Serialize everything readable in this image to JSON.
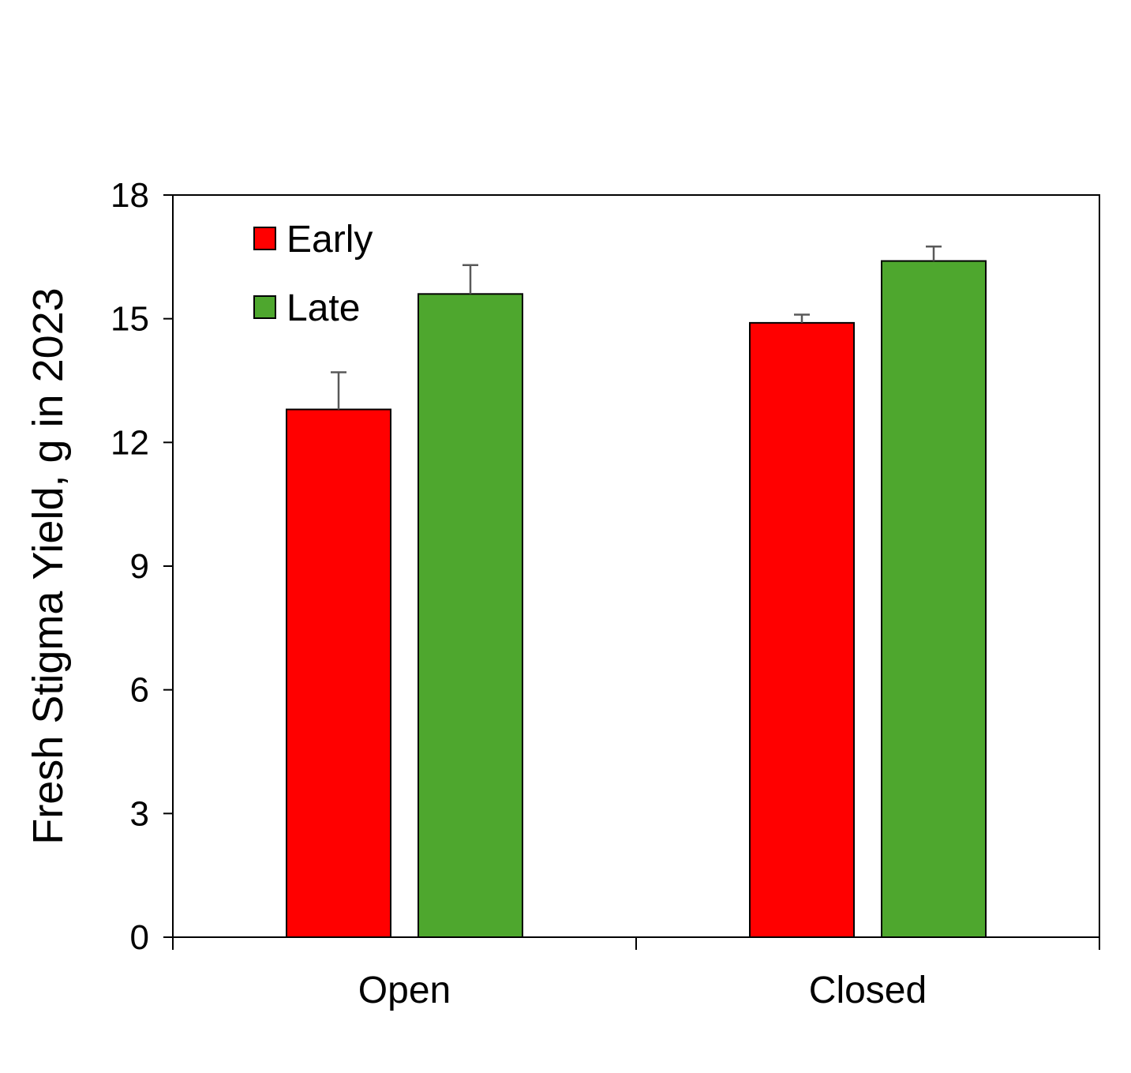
{
  "chart_data": {
    "type": "bar",
    "categories": [
      "Open",
      "Closed"
    ],
    "series": [
      {
        "name": "Early",
        "color": "#ff0000",
        "values": [
          12.8,
          14.9
        ],
        "errors": [
          0.9,
          0.2
        ]
      },
      {
        "name": "Late",
        "color": "#4ea72e",
        "values": [
          15.6,
          16.4
        ],
        "errors": [
          0.7,
          0.35
        ]
      }
    ],
    "ylabel": "Fresh Stigma Yield, g in 2023",
    "ylim": [
      0,
      18
    ],
    "yticks": [
      0,
      3,
      6,
      9,
      12,
      15,
      18
    ],
    "legend_position": "top-left",
    "grid": false
  }
}
